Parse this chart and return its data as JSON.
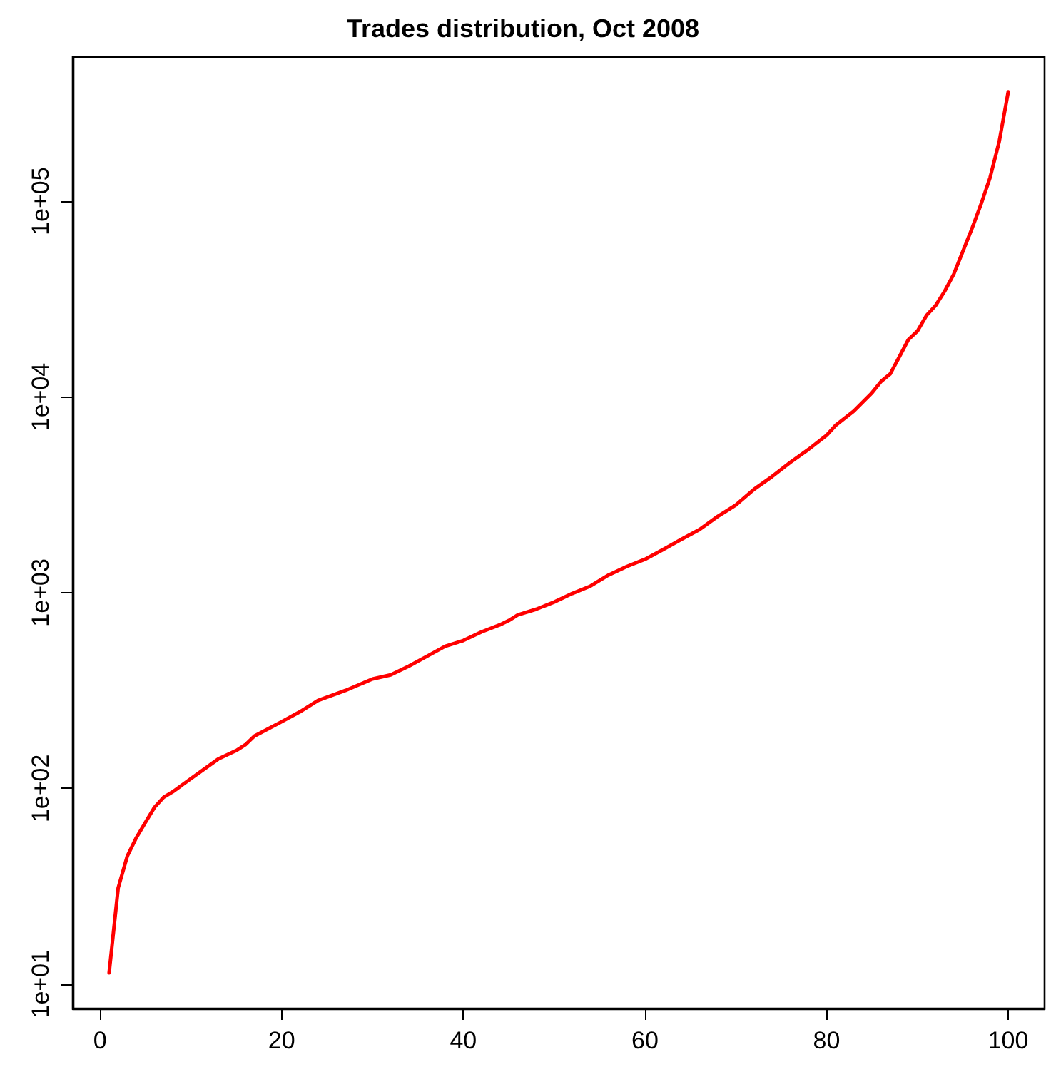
{
  "chart_data": {
    "type": "line",
    "title": "Trades distribution, Oct 2008",
    "log": "y",
    "grid": false,
    "marker": "none",
    "line_style": "solid",
    "xlim": [
      -3,
      104
    ],
    "xticks": [
      0,
      20,
      40,
      60,
      80,
      100
    ],
    "ylim": [
      7.5,
      545000
    ],
    "yticks": [
      {
        "value": 10,
        "label": "1e+01"
      },
      {
        "value": 100,
        "label": "1e+02"
      },
      {
        "value": 1000,
        "label": "1e+03"
      },
      {
        "value": 10000,
        "label": "1e+04"
      },
      {
        "value": 100000,
        "label": "1e+05"
      }
    ],
    "series": [
      {
        "color": "#ff0000",
        "x": [
          1,
          2,
          3,
          4,
          5,
          6,
          7,
          8,
          10,
          13,
          15,
          16,
          17,
          20,
          22,
          24,
          27,
          30,
          32,
          34,
          36,
          38,
          40,
          42,
          44,
          45,
          46,
          48,
          50,
          52,
          54,
          56,
          58,
          60,
          62,
          64,
          66,
          68,
          70,
          72,
          74,
          76,
          78,
          80,
          81,
          83,
          85,
          86,
          87,
          88,
          89,
          90,
          91,
          92,
          93,
          94,
          95,
          96,
          97,
          98,
          99,
          100
        ],
        "values": [
          11.4,
          31,
          45,
          56,
          67,
          80,
          90,
          96,
          112,
          141,
          156,
          167,
          185,
          219,
          246,
          281,
          316,
          362,
          380,
          421,
          473,
          532,
          569,
          630,
          684,
          720,
          770,
          822,
          895,
          990,
          1080,
          1230,
          1360,
          1480,
          1660,
          1870,
          2100,
          2450,
          2800,
          3370,
          3920,
          4630,
          5390,
          6370,
          7160,
          8470,
          10500,
          12000,
          13100,
          16000,
          19600,
          21700,
          26100,
          29300,
          34700,
          42400,
          55400,
          72400,
          96400,
          132000,
          201000,
          362000
        ]
      }
    ]
  }
}
